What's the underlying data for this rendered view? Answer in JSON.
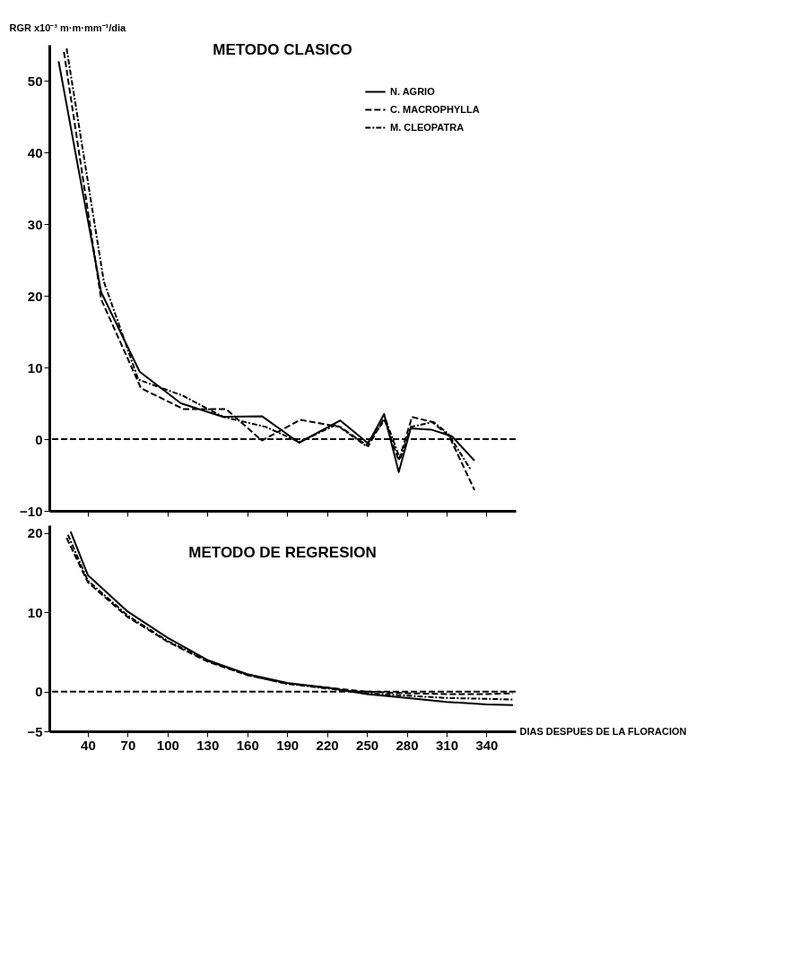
{
  "chart_data": [
    {
      "type": "line",
      "title": "METODO CLASICO",
      "ylabel": "RGR x10⁻³ m·m·mm⁻¹/dia",
      "xlim": [
        11,
        362
      ],
      "xticks": [
        40,
        70,
        100,
        130,
        160,
        190,
        220,
        250,
        280,
        310,
        340
      ],
      "ylim": [
        -10,
        55
      ],
      "yticks": [
        -10,
        0,
        10,
        20,
        30,
        40,
        50
      ],
      "tick_labels": "y",
      "legend": "top right",
      "grid": false,
      "ref_lines": [
        {
          "axis": "y",
          "value": 0,
          "line_style": "dashed",
          "color": "#000000"
        }
      ],
      "series": [
        {
          "name": "N. AGRIO",
          "color": "#000000",
          "line_style": "solid",
          "x": [
            18,
            50,
            79,
            110,
            142,
            171,
            199,
            230,
            251,
            263,
            274,
            283,
            299,
            314,
            331
          ],
          "values": [
            52.7,
            20.5,
            9.4,
            5.0,
            3.1,
            3.2,
            -0.5,
            2.6,
            -0.6,
            3.5,
            -4.6,
            1.5,
            1.3,
            0.4,
            -3.0
          ]
        },
        {
          "name": "C. MACROPHYLLA",
          "color": "#000000",
          "line_style": "dashed",
          "x": [
            22,
            50,
            80,
            112,
            144,
            171,
            200,
            230,
            251,
            263,
            274,
            284,
            299,
            312,
            331
          ],
          "values": [
            54.0,
            19.5,
            7.1,
            4.2,
            4.2,
            -0.2,
            2.7,
            1.7,
            -1.0,
            2.9,
            -3.0,
            3.1,
            2.4,
            0.4,
            -7.1
          ]
        },
        {
          "name": "M. CLEOPATRA",
          "color": "#000000",
          "line_style": "dashdot",
          "x": [
            24,
            52,
            78,
            111,
            142,
            174,
            199,
            227,
            249,
            264,
            275,
            283,
            300,
            311,
            328
          ],
          "values": [
            54.5,
            22.0,
            8.3,
            6.1,
            3.1,
            1.7,
            -0.4,
            2.0,
            -0.9,
            2.8,
            -2.8,
            1.7,
            2.4,
            0.8,
            -4.2
          ]
        }
      ]
    },
    {
      "type": "line",
      "title": "METODO DE REGRESION",
      "xlabel": "DIAS DESPUES DE LA FLORACION",
      "xlim": [
        11,
        362
      ],
      "xticks": [
        40,
        70,
        100,
        130,
        160,
        190,
        220,
        250,
        280,
        310,
        340
      ],
      "ylim": [
        -5,
        21
      ],
      "yticks": [
        -5,
        0,
        10,
        20
      ],
      "grid": false,
      "ref_lines": [
        {
          "axis": "y",
          "value": 0,
          "line_style": "dashed",
          "color": "#000000"
        }
      ],
      "series": [
        {
          "color": "#000000",
          "line_style": "solid",
          "x": [
            27,
            40,
            70,
            100,
            130,
            160,
            190,
            220,
            250,
            280,
            310,
            340,
            360
          ],
          "values": [
            20.2,
            14.7,
            10.1,
            6.8,
            4.0,
            2.2,
            1.1,
            0.5,
            -0.3,
            -0.8,
            -1.3,
            -1.6,
            -1.7
          ]
        },
        {
          "color": "#000000",
          "line_style": "dashed",
          "x": [
            24,
            40,
            70,
            100,
            130,
            160,
            190,
            220,
            250,
            280,
            310,
            340,
            360
          ],
          "values": [
            19.4,
            13.8,
            9.4,
            6.3,
            3.8,
            2.1,
            1.0,
            0.5,
            0.0,
            -0.2,
            -0.3,
            -0.3,
            -0.2
          ]
        },
        {
          "color": "#000000",
          "line_style": "dashdot",
          "x": [
            25,
            40,
            70,
            100,
            130,
            160,
            190,
            220,
            250,
            280,
            310,
            340,
            360
          ],
          "values": [
            19.8,
            14.0,
            9.6,
            6.4,
            3.9,
            2.1,
            1.0,
            0.4,
            -0.2,
            -0.5,
            -0.8,
            -0.9,
            -1.0
          ]
        }
      ]
    }
  ]
}
